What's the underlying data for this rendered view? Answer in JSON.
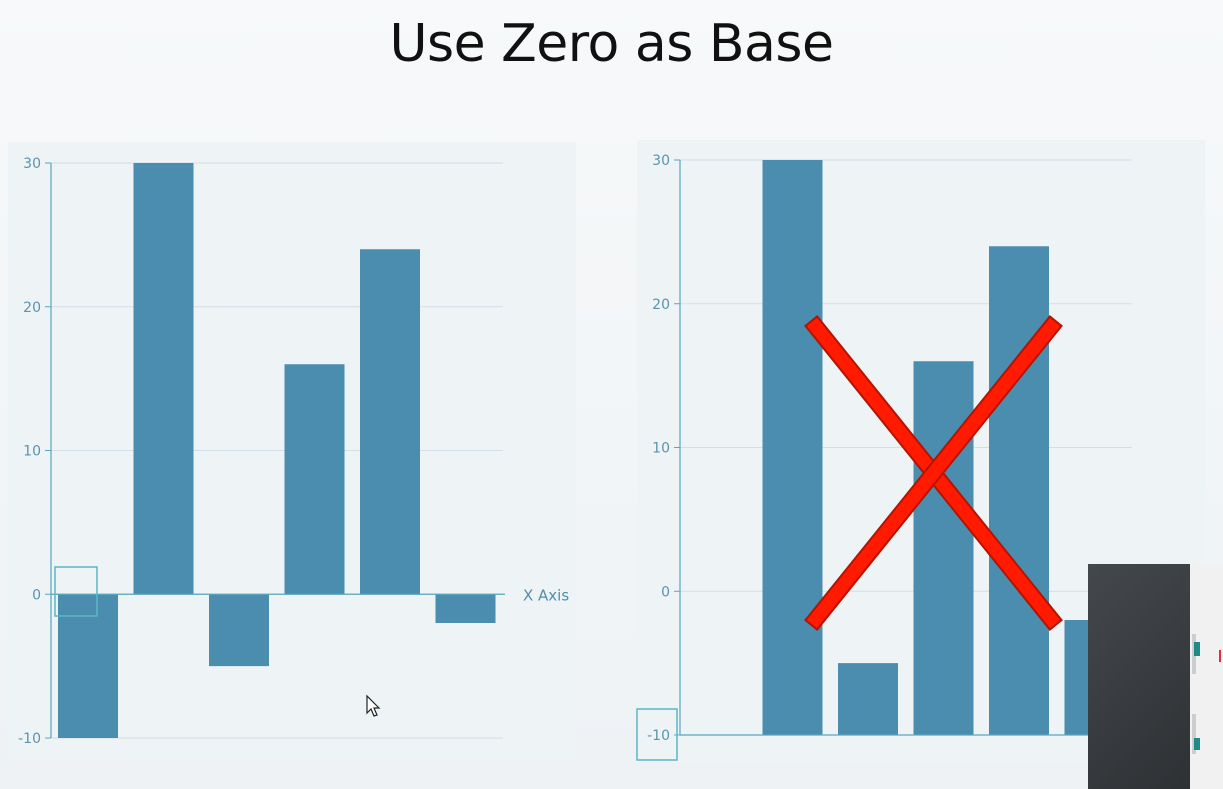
{
  "slide": {
    "title": "Use Zero as Base"
  },
  "colors": {
    "bar": "#4a8daf",
    "axis": "#5aa6bd",
    "grid": "#d3dee6",
    "cross": "#ff1a00",
    "highlight": "#5ab8c4"
  },
  "chart_data": [
    {
      "type": "bar",
      "categories": [
        "",
        "",
        "",
        "",
        "",
        ""
      ],
      "values": [
        -10,
        30,
        -5,
        16,
        24,
        -2
      ],
      "xlabel": "X Axis",
      "ylabel": "",
      "ylim": [
        -10,
        30
      ],
      "yticks": [
        "-10",
        "0",
        "10",
        "20",
        "30"
      ],
      "grid": true,
      "baseline": 0
    },
    {
      "type": "bar",
      "categories": [
        "",
        "",
        "",
        "",
        "",
        ""
      ],
      "values": [
        -10,
        30,
        -5,
        16,
        24,
        -2
      ],
      "xlabel": "",
      "ylabel": "",
      "ylim": [
        -10,
        30
      ],
      "yticks": [
        "-10",
        "0",
        "10",
        "20",
        "30"
      ],
      "grid": true,
      "baseline": -10,
      "annotation": "red cross"
    }
  ]
}
